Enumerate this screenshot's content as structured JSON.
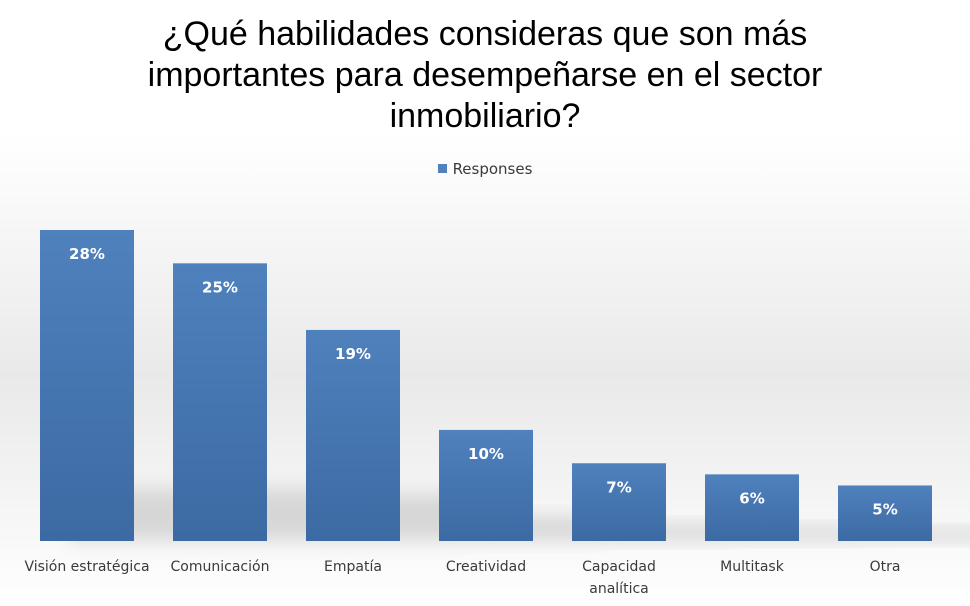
{
  "chart_data": {
    "type": "bar",
    "title_lines": [
      "¿Qué habilidades consideras que son más",
      "importantes para desempeñarse en el sector",
      "inmobiliario?"
    ],
    "legend": [
      "Responses"
    ],
    "legend_position": "top",
    "categories": [
      [
        "Visión estratégica"
      ],
      [
        "Comunicación"
      ],
      [
        "Empatía"
      ],
      [
        "Creatividad"
      ],
      [
        "Capacidad",
        "analítica"
      ],
      [
        "Multitask"
      ],
      [
        "Otra"
      ]
    ],
    "series": [
      {
        "name": "Responses",
        "values": [
          28,
          25,
          19,
          10,
          7,
          6,
          5
        ],
        "labels": [
          "28%",
          "25%",
          "19%",
          "10%",
          "7%",
          "6%",
          "5%"
        ]
      }
    ],
    "ylim": [
      0,
      30
    ],
    "grid": false,
    "colors": {
      "bar": "#4f81bd",
      "bar_dark": "#3c6aa3",
      "bar_label": "#ffffff",
      "text": "#3a3a3a"
    }
  }
}
